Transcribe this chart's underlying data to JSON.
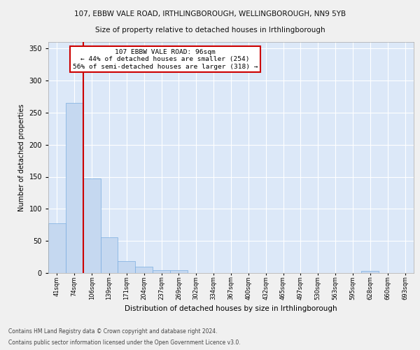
{
  "title1": "107, EBBW VALE ROAD, IRTHLINGBOROUGH, WELLINGBOROUGH, NN9 5YB",
  "title2": "Size of property relative to detached houses in Irthlingborough",
  "xlabel": "Distribution of detached houses by size in Irthlingborough",
  "ylabel": "Number of detached properties",
  "footer1": "Contains HM Land Registry data © Crown copyright and database right 2024.",
  "footer2": "Contains public sector information licensed under the Open Government Licence v3.0.",
  "categories": [
    "41sqm",
    "74sqm",
    "106sqm",
    "139sqm",
    "171sqm",
    "204sqm",
    "237sqm",
    "269sqm",
    "302sqm",
    "334sqm",
    "367sqm",
    "400sqm",
    "432sqm",
    "465sqm",
    "497sqm",
    "530sqm",
    "563sqm",
    "595sqm",
    "628sqm",
    "660sqm",
    "693sqm"
  ],
  "values": [
    78,
    265,
    147,
    56,
    19,
    10,
    4,
    4,
    0,
    0,
    0,
    0,
    0,
    0,
    0,
    0,
    0,
    0,
    3,
    0,
    0
  ],
  "bar_color": "#c5d8f0",
  "bar_edge_color": "#7aade0",
  "vline_color": "#cc0000",
  "vline_x": 2.0,
  "annotation_text": "107 EBBW VALE ROAD: 96sqm\n← 44% of detached houses are smaller (254)\n56% of semi-detached houses are larger (318) →",
  "annotation_box_color": "#ffffff",
  "annotation_box_edge_color": "#cc0000",
  "ylim": [
    0,
    360
  ],
  "yticks": [
    0,
    50,
    100,
    150,
    200,
    250,
    300,
    350
  ],
  "background_color": "#dce8f8",
  "grid_color": "#ffffff",
  "fig_background": "#f0f0f0"
}
